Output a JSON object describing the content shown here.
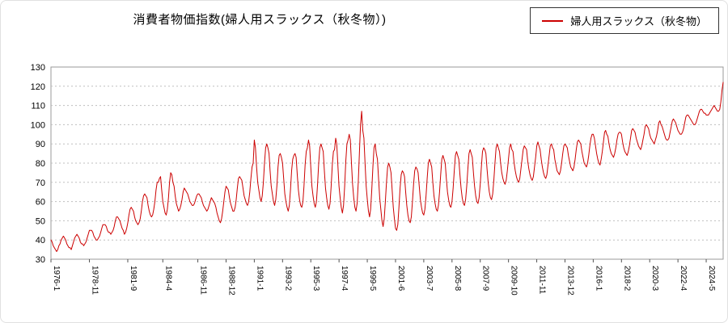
{
  "title": "消費者物価指数(婦人用スラックス（秋冬物）)",
  "legend": {
    "label": "婦人用スラックス（秋冬物）",
    "color": "#cc0000"
  },
  "chart_data": {
    "type": "line",
    "title": "消費者物価指数(婦人用スラックス（秋冬物）)",
    "series_name": "婦人用スラックス（秋冬物）",
    "x_start": "1976-1",
    "frequency": "monthly",
    "xlabel": "",
    "ylabel": "",
    "ylim": [
      30,
      130
    ],
    "y_ticks": [
      30,
      40,
      50,
      60,
      70,
      80,
      90,
      100,
      110,
      120,
      130
    ],
    "x_tick_labels": [
      "1976-1",
      "1978-11",
      "1981-9",
      "1984-4",
      "1986-11",
      "1988-12",
      "1991-1",
      "1993-2",
      "1995-3",
      "1997-4",
      "1999-5",
      "2001-6",
      "2003-7",
      "2005-8",
      "2007-9",
      "2009-10",
      "2011-11",
      "2013-12",
      "2016-1",
      "2018-2",
      "2020-3",
      "2022-4",
      "2024-5"
    ],
    "grid": "horizontal-dotted",
    "legend_position": "top-right",
    "line_color": "#cc0000",
    "values": [
      40,
      39,
      37,
      36,
      35,
      34,
      35,
      37,
      38,
      40,
      41,
      42,
      41,
      40,
      38,
      37,
      36,
      36,
      35,
      37,
      39,
      41,
      42,
      43,
      42,
      41,
      39,
      38,
      38,
      37,
      38,
      39,
      41,
      43,
      45,
      45,
      45,
      44,
      42,
      41,
      40,
      40,
      41,
      42,
      44,
      46,
      48,
      48,
      48,
      47,
      45,
      44,
      44,
      43,
      44,
      45,
      47,
      50,
      52,
      52,
      51,
      50,
      48,
      46,
      45,
      43,
      44,
      46,
      49,
      53,
      56,
      57,
      56,
      55,
      52,
      50,
      49,
      48,
      49,
      51,
      55,
      60,
      63,
      64,
      63,
      62,
      58,
      55,
      53,
      52,
      53,
      56,
      60,
      66,
      70,
      70,
      72,
      73,
      66,
      60,
      57,
      54,
      53,
      56,
      62,
      70,
      75,
      74,
      70,
      68,
      63,
      59,
      57,
      55,
      56,
      58,
      61,
      65,
      67,
      66,
      65,
      64,
      62,
      60,
      59,
      58,
      58,
      59,
      61,
      63,
      64,
      64,
      63,
      62,
      60,
      58,
      57,
      56,
      55,
      56,
      58,
      60,
      62,
      61,
      60,
      59,
      57,
      54,
      52,
      50,
      49,
      51,
      55,
      60,
      65,
      68,
      67,
      66,
      62,
      59,
      57,
      55,
      55,
      57,
      61,
      67,
      72,
      73,
      72,
      71,
      67,
      63,
      61,
      59,
      58,
      60,
      65,
      72,
      78,
      80,
      92,
      88,
      78,
      70,
      66,
      62,
      60,
      63,
      70,
      80,
      88,
      90,
      88,
      85,
      76,
      68,
      64,
      60,
      58,
      61,
      68,
      78,
      84,
      85,
      83,
      80,
      72,
      64,
      60,
      57,
      55,
      58,
      66,
      76,
      82,
      84,
      85,
      83,
      74,
      66,
      61,
      58,
      57,
      60,
      68,
      79,
      86,
      88,
      92,
      89,
      78,
      68,
      63,
      59,
      57,
      60,
      69,
      80,
      88,
      90,
      88,
      86,
      76,
      67,
      62,
      58,
      56,
      59,
      68,
      79,
      86,
      87,
      93,
      90,
      79,
      68,
      62,
      57,
      54,
      58,
      68,
      81,
      90,
      92,
      95,
      92,
      80,
      69,
      62,
      57,
      55,
      59,
      70,
      85,
      100,
      107,
      97,
      93,
      80,
      68,
      61,
      55,
      52,
      56,
      66,
      78,
      88,
      90,
      85,
      82,
      72,
      62,
      56,
      50,
      47,
      51,
      60,
      70,
      78,
      80,
      78,
      75,
      66,
      57,
      51,
      46,
      45,
      48,
      57,
      67,
      74,
      76,
      75,
      73,
      65,
      58,
      53,
      50,
      49,
      52,
      60,
      69,
      76,
      78,
      77,
      75,
      68,
      61,
      57,
      54,
      53,
      56,
      63,
      72,
      80,
      82,
      80,
      78,
      70,
      63,
      59,
      56,
      55,
      58,
      65,
      74,
      82,
      84,
      82,
      80,
      72,
      65,
      61,
      58,
      57,
      60,
      67,
      76,
      84,
      86,
      84,
      82,
      74,
      67,
      62,
      59,
      58,
      61,
      68,
      77,
      85,
      87,
      85,
      83,
      75,
      68,
      63,
      60,
      59,
      62,
      69,
      78,
      86,
      88,
      87,
      85,
      77,
      70,
      65,
      62,
      61,
      64,
      71,
      80,
      88,
      90,
      88,
      86,
      80,
      75,
      72,
      70,
      69,
      71,
      76,
      82,
      88,
      90,
      87,
      86,
      80,
      76,
      73,
      71,
      70,
      72,
      77,
      82,
      87,
      89,
      88,
      87,
      81,
      77,
      74,
      72,
      71,
      73,
      78,
      83,
      89,
      91,
      89,
      87,
      82,
      78,
      75,
      73,
      72,
      74,
      79,
      84,
      89,
      90,
      88,
      87,
      82,
      79,
      76,
      75,
      74,
      76,
      80,
      85,
      89,
      90,
      89,
      88,
      84,
      81,
      78,
      77,
      76,
      78,
      82,
      87,
      91,
      92,
      91,
      90,
      86,
      83,
      80,
      79,
      78,
      80,
      84,
      89,
      93,
      95,
      95,
      93,
      89,
      85,
      82,
      80,
      79,
      82,
      86,
      91,
      96,
      97,
      95,
      94,
      90,
      87,
      85,
      84,
      83,
      85,
      88,
      92,
      95,
      96,
      96,
      95,
      91,
      88,
      86,
      85,
      84,
      86,
      89,
      93,
      97,
      98,
      97,
      96,
      93,
      91,
      89,
      88,
      87,
      89,
      92,
      95,
      99,
      100,
      99,
      98,
      95,
      93,
      92,
      91,
      90,
      92,
      94,
      97,
      101,
      102,
      100,
      99,
      97,
      95,
      93,
      92,
      92,
      93,
      96,
      99,
      102,
      103,
      102,
      101,
      99,
      97,
      96,
      95,
      95,
      96,
      98,
      101,
      104,
      105,
      105,
      104,
      103,
      102,
      101,
      100,
      100,
      101,
      103,
      105,
      107,
      108,
      108,
      107,
      106,
      106,
      105,
      105,
      105,
      106,
      107,
      108,
      109,
      110,
      109,
      108,
      107,
      107,
      108,
      112,
      118,
      122
    ]
  }
}
